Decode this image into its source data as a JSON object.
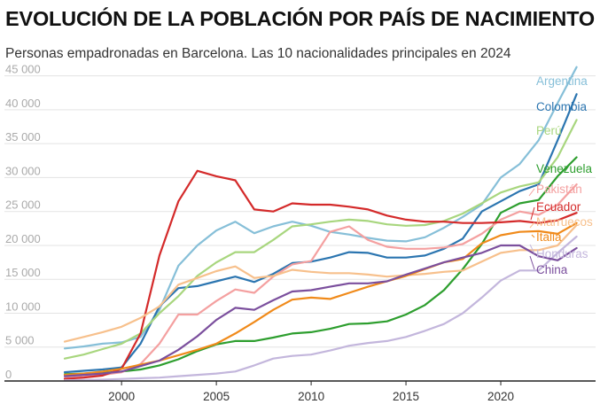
{
  "title": "EVOLUCIÓN DE LA POBLACIÓN POR PAÍS DE NACIMIENTO",
  "subtitle": "Personas empadronadas en Barcelona. Las 10 nacionalidades principales en 2024",
  "chart_data": {
    "type": "line",
    "ylim": [
      0,
      46000
    ],
    "xlim": [
      1996.3,
      2025
    ],
    "yticks": [
      {
        "v": 0,
        "label": "0"
      },
      {
        "v": 5000,
        "label": "5 000"
      },
      {
        "v": 10000,
        "label": "10 000"
      },
      {
        "v": 15000,
        "label": "15 000"
      },
      {
        "v": 20000,
        "label": "20 000"
      },
      {
        "v": 25000,
        "label": "25 000"
      },
      {
        "v": 30000,
        "label": "30 000"
      },
      {
        "v": 35000,
        "label": "35 000"
      },
      {
        "v": 40000,
        "label": "40 000"
      },
      {
        "v": 45000,
        "label": "45 000"
      }
    ],
    "xticks": [
      {
        "v": 2000,
        "label": "2000"
      },
      {
        "v": 2005,
        "label": "2005"
      },
      {
        "v": 2010,
        "label": "2010"
      },
      {
        "v": 2015,
        "label": "2015"
      },
      {
        "v": 2020,
        "label": "2020"
      }
    ],
    "grid": true,
    "x": [
      1997,
      1998,
      1999,
      2000,
      2001,
      2002,
      2003,
      2004,
      2005,
      2006,
      2007,
      2008,
      2009,
      2010,
      2011,
      2012,
      2013,
      2014,
      2015,
      2016,
      2017,
      2018,
      2019,
      2020,
      2021,
      2022,
      2023,
      2024
    ],
    "series": [
      {
        "name": "Argentina",
        "color": "#86bfd8",
        "values": [
          4800,
          5100,
          5500,
          5700,
          6500,
          10500,
          17000,
          20000,
          22200,
          23500,
          21800,
          22800,
          23500,
          22900,
          22000,
          21600,
          21100,
          20700,
          20600,
          21200,
          22600,
          24200,
          26000,
          30000,
          32000,
          35500,
          41000,
          46300
        ]
      },
      {
        "name": "Colombia",
        "color": "#2b75b0",
        "values": [
          1300,
          1500,
          1700,
          2000,
          5500,
          11000,
          13700,
          14000,
          14700,
          15400,
          14600,
          15800,
          17400,
          17600,
          18200,
          19000,
          18900,
          18200,
          18200,
          18500,
          19500,
          21000,
          25000,
          26500,
          28000,
          29000,
          35500,
          42300
        ]
      },
      {
        "name": "Perú",
        "color": "#a8d67e",
        "values": [
          3300,
          3900,
          4700,
          5500,
          7000,
          10000,
          12500,
          15500,
          17500,
          19000,
          19000,
          20800,
          22800,
          23100,
          23500,
          23800,
          23600,
          23100,
          22900,
          23000,
          23600,
          24700,
          26200,
          27800,
          28700,
          29300,
          33000,
          38500
        ]
      },
      {
        "name": "Venezuela",
        "color": "#2d9e2e",
        "values": [
          1000,
          1100,
          1200,
          1400,
          1700,
          2300,
          3200,
          4400,
          5400,
          5900,
          5900,
          6400,
          7000,
          7200,
          7700,
          8400,
          8500,
          8800,
          9800,
          11200,
          13400,
          16500,
          20200,
          24800,
          26200,
          26700,
          30200,
          33000
        ]
      },
      {
        "name": "Pakistán",
        "color": "#f4a0a0",
        "values": [
          400,
          600,
          900,
          1300,
          2500,
          5500,
          9800,
          9800,
          11800,
          13500,
          13000,
          15400,
          17200,
          17700,
          22000,
          22800,
          20800,
          19800,
          19500,
          19500,
          19700,
          20200,
          21700,
          23800,
          25000,
          24500,
          26000,
          29000
        ]
      },
      {
        "name": "Ecuador",
        "color": "#d42a2a",
        "values": [
          300,
          500,
          800,
          1800,
          7000,
          18500,
          26500,
          31000,
          30200,
          29600,
          25300,
          25000,
          26200,
          26000,
          26000,
          25700,
          25300,
          24400,
          23800,
          23500,
          23500,
          23300,
          23300,
          23400,
          23600,
          23300,
          23700,
          24800
        ]
      },
      {
        "name": "Marruecos",
        "color": "#f7c08c",
        "values": [
          5800,
          6500,
          7200,
          8000,
          9300,
          11000,
          14200,
          15200,
          16200,
          16900,
          15200,
          15500,
          16400,
          16100,
          15900,
          15900,
          15700,
          15400,
          15600,
          15800,
          16100,
          16300,
          17600,
          18900,
          19300,
          19300,
          20000,
          23000
        ]
      },
      {
        "name": "Italia",
        "color": "#f08a1a",
        "values": [
          900,
          1100,
          1400,
          1800,
          2400,
          3000,
          3800,
          4600,
          5500,
          7000,
          8700,
          10500,
          12000,
          12300,
          12100,
          13000,
          13900,
          14700,
          15500,
          16500,
          17500,
          18000,
          20300,
          21500,
          22000,
          22100,
          21700,
          23300
        ]
      },
      {
        "name": "Honduras",
        "color": "#c3b6dc",
        "values": [
          100,
          150,
          200,
          300,
          400,
          500,
          700,
          900,
          1100,
          1400,
          2300,
          3300,
          3700,
          3900,
          4500,
          5200,
          5600,
          5900,
          6500,
          7400,
          8400,
          10000,
          12300,
          14800,
          16300,
          16300,
          18900,
          21300
        ]
      },
      {
        "name": "China",
        "color": "#7b4f9d",
        "values": [
          700,
          900,
          1100,
          1400,
          2200,
          3000,
          4600,
          6600,
          9000,
          10800,
          10500,
          11900,
          13200,
          13400,
          13900,
          14400,
          14400,
          14700,
          15700,
          16600,
          17500,
          18200,
          18900,
          20000,
          20000,
          18400,
          17800,
          19600
        ]
      }
    ],
    "legend": "direct labels at line ends"
  }
}
